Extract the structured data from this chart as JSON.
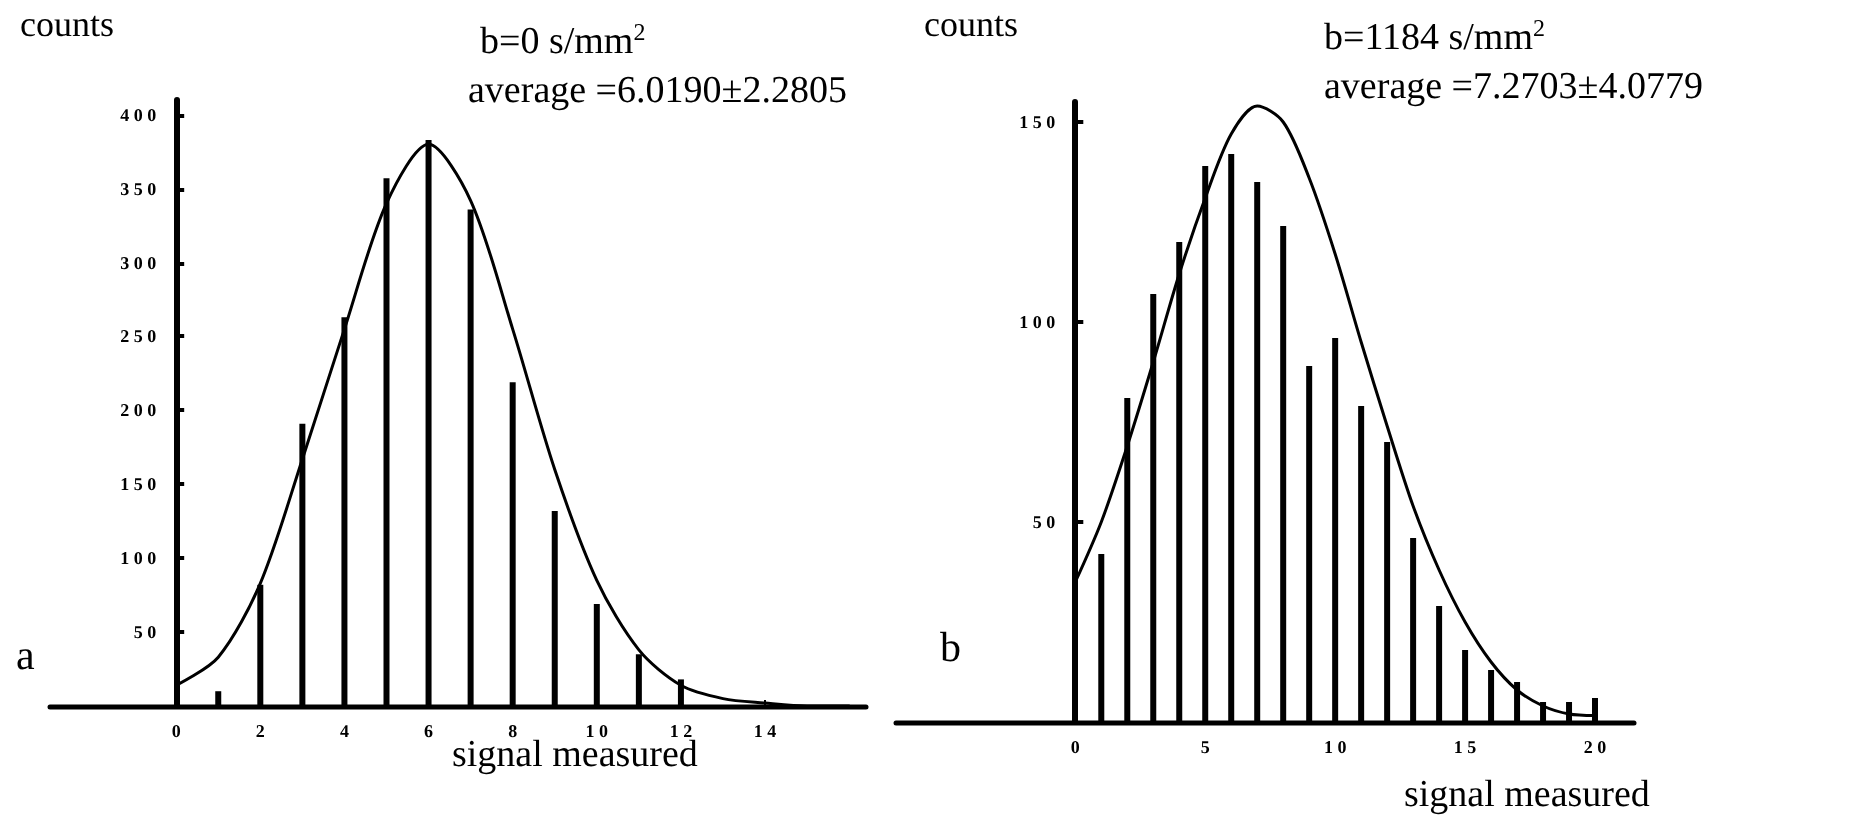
{
  "chart_data": [
    {
      "type": "bar",
      "xlabel": "signal measured",
      "ylabel": "counts",
      "annotations": [
        "b=0 s/mm$^{2}$",
        "average =6.0190±2.2805",
        "a"
      ],
      "xlim": [
        -3,
        16.4
      ],
      "xticks": [
        0,
        2,
        4,
        6,
        8,
        10,
        12,
        14
      ],
      "ylim": [
        0,
        410
      ],
      "yticks": [
        50,
        100,
        150,
        200,
        250,
        300,
        350,
        400
      ],
      "series": [
        {
          "color": "#000000",
          "x": [
            1,
            2,
            3,
            4,
            5,
            6,
            7,
            8,
            9,
            10,
            11,
            12
          ],
          "values": [
            10,
            82,
            191,
            263,
            357,
            383,
            336,
            219,
            132,
            69,
            35,
            18
          ]
        },
        {
          "type": "line",
          "color": "#000000",
          "marker": "none",
          "x": [
            0,
            1,
            2,
            3,
            4,
            5,
            6,
            7,
            8,
            9,
            10,
            11,
            12,
            13,
            14,
            15,
            16
          ],
          "values": [
            14,
            33,
            83,
            167,
            255,
            340,
            380,
            342,
            255,
            160,
            85,
            38,
            14,
            5,
            2,
            0,
            0
          ]
        }
      ]
    },
    {
      "type": "bar",
      "xlabel": "signal measured",
      "ylabel": "counts",
      "annotations": [
        "b=1184 s/mm$^{2}$",
        "average =7.2703±4.0779",
        "b"
      ],
      "xlim": [
        -6.9,
        21.5
      ],
      "xticks": [
        0,
        5,
        10,
        15,
        20
      ],
      "ylim": [
        0,
        155
      ],
      "yticks": [
        50,
        100,
        150
      ],
      "series": [
        {
          "color": "#000000",
          "x": [
            1,
            2,
            3,
            4,
            5,
            6,
            7,
            8,
            9,
            10,
            11,
            12,
            13,
            14,
            15,
            16,
            17,
            18,
            19,
            20
          ],
          "values": [
            42,
            81,
            107,
            120,
            139,
            142,
            135,
            124,
            89,
            96,
            79,
            70,
            46,
            29,
            18,
            13,
            10,
            5,
            5,
            6
          ]
        },
        {
          "type": "line",
          "color": "#000000",
          "marker": "none",
          "x": [
            0,
            1,
            2,
            3,
            4,
            5,
            6,
            7,
            8,
            9,
            10,
            11,
            12,
            13,
            14,
            15,
            16,
            17,
            18,
            19,
            20
          ],
          "values": [
            35,
            50,
            69,
            90,
            112,
            131,
            147,
            154,
            150,
            136,
            117,
            95,
            74,
            54,
            38,
            25,
            15,
            8,
            4,
            2,
            1.6
          ]
        }
      ]
    }
  ]
}
